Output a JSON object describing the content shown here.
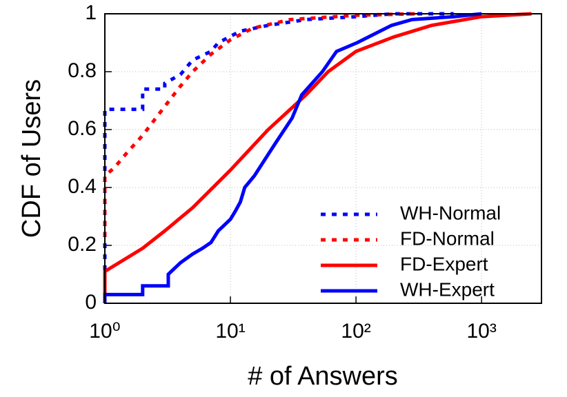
{
  "chart_data": {
    "type": "line",
    "xscale": "log",
    "x_label": "# of Answers",
    "y_label": "CDF of Users",
    "xlim": [
      1,
      3000
    ],
    "ylim": [
      0,
      1
    ],
    "xticks": [
      {
        "value": 1,
        "label": "10⁰"
      },
      {
        "value": 10,
        "label": "10¹"
      },
      {
        "value": 100,
        "label": "10²"
      },
      {
        "value": 1000,
        "label": "10³"
      }
    ],
    "yticks": [
      0,
      0.2,
      0.4,
      0.6,
      0.8,
      1
    ],
    "grid": true,
    "legend": "lower right",
    "series": [
      {
        "name": "WH-Normal",
        "color": "#0000ff",
        "style": "dotted",
        "x": [
          1,
          1,
          1,
          2,
          2,
          3,
          3,
          4,
          5,
          7,
          8,
          12,
          20,
          40,
          100,
          200,
          600
        ],
        "values": [
          0,
          0.6,
          0.67,
          0.67,
          0.74,
          0.74,
          0.76,
          0.79,
          0.84,
          0.87,
          0.9,
          0.94,
          0.96,
          0.98,
          0.99,
          1,
          1
        ]
      },
      {
        "name": "FD-Normal",
        "color": "#ff0000",
        "style": "dotted",
        "x": [
          1,
          1,
          1.2,
          1.5,
          2,
          3,
          4,
          5,
          7,
          10,
          15,
          30,
          100,
          300
        ],
        "values": [
          0.23,
          0.44,
          0.47,
          0.52,
          0.58,
          0.68,
          0.75,
          0.8,
          0.86,
          0.91,
          0.95,
          0.98,
          0.995,
          1
        ]
      },
      {
        "name": "FD-Expert",
        "color": "#ff0000",
        "style": "solid",
        "x": [
          1,
          1,
          2,
          3,
          5,
          10,
          20,
          40,
          60,
          100,
          200,
          400,
          1000,
          2500
        ],
        "values": [
          0,
          0.11,
          0.19,
          0.25,
          0.33,
          0.46,
          0.6,
          0.72,
          0.8,
          0.87,
          0.92,
          0.96,
          0.99,
          1
        ]
      },
      {
        "name": "WH-Expert",
        "color": "#0000ff",
        "style": "solid",
        "x": [
          1,
          1,
          2,
          2,
          3.2,
          3.2,
          4,
          5,
          6,
          7,
          8,
          10,
          11,
          12,
          13,
          15.5,
          22.6,
          31,
          37,
          54,
          70,
          102,
          140,
          192,
          280,
          600,
          1000
        ],
        "values": [
          0,
          0.03,
          0.03,
          0.06,
          0.06,
          0.1,
          0.14,
          0.17,
          0.19,
          0.21,
          0.25,
          0.29,
          0.32,
          0.35,
          0.4,
          0.44,
          0.55,
          0.64,
          0.72,
          0.8,
          0.87,
          0.9,
          0.93,
          0.96,
          0.98,
          0.99,
          1
        ]
      }
    ]
  }
}
